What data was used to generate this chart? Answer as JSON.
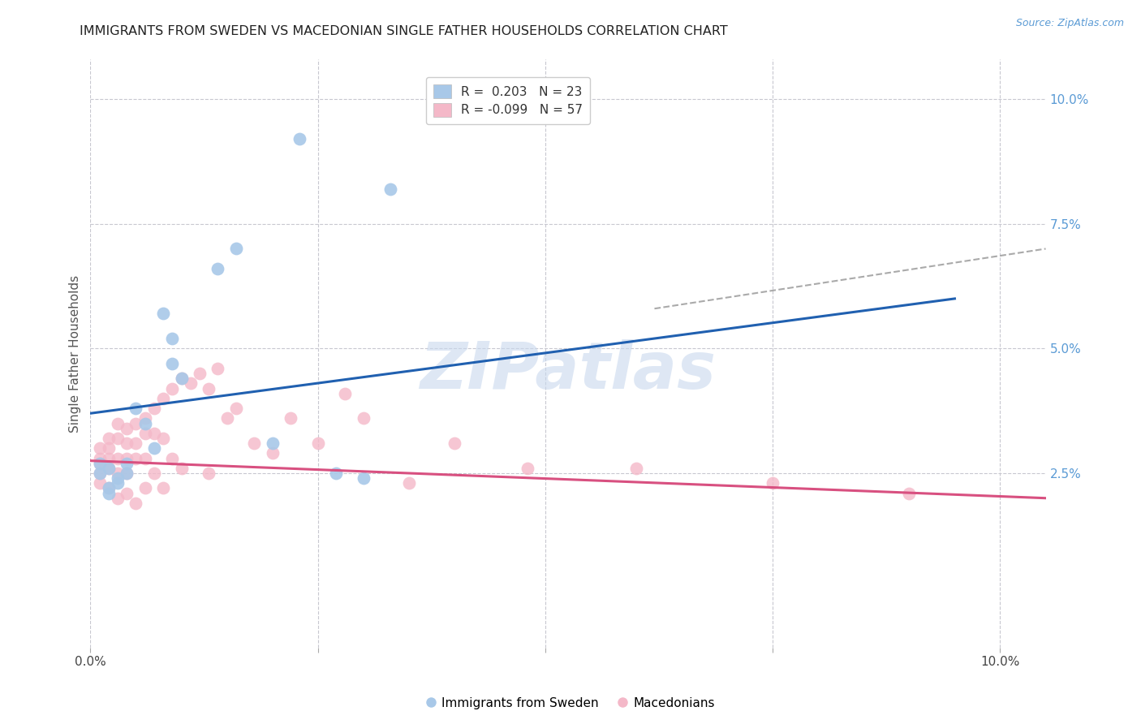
{
  "title": "IMMIGRANTS FROM SWEDEN VS MACEDONIAN SINGLE FATHER HOUSEHOLDS CORRELATION CHART",
  "source": "Source: ZipAtlas.com",
  "ylabel": "Single Father Households",
  "ytick_labels": [
    "2.5%",
    "5.0%",
    "7.5%",
    "10.0%"
  ],
  "ytick_values": [
    0.025,
    0.05,
    0.075,
    0.1
  ],
  "xlim": [
    0.0,
    0.105
  ],
  "ylim": [
    -0.01,
    0.108
  ],
  "legend_blue_label": "Immigrants from Sweden",
  "legend_pink_label": "Macedonians",
  "legend_r_blue": "R =  0.203",
  "legend_n_blue": "N = 23",
  "legend_r_pink": "R = -0.099",
  "legend_n_pink": "N = 57",
  "blue_color": "#a8c8e8",
  "pink_color": "#f4b8c8",
  "blue_line_color": "#2060b0",
  "pink_line_color": "#d85080",
  "dashed_line_color": "#aaaaaa",
  "grid_color": "#c8c8d0",
  "background_color": "#ffffff",
  "watermark": "ZIPatlas",
  "blue_scatter_x": [
    0.023,
    0.033,
    0.016,
    0.014,
    0.008,
    0.009,
    0.009,
    0.01,
    0.005,
    0.006,
    0.007,
    0.004,
    0.004,
    0.003,
    0.003,
    0.002,
    0.002,
    0.002,
    0.001,
    0.001,
    0.02,
    0.027,
    0.03
  ],
  "blue_scatter_y": [
    0.092,
    0.082,
    0.07,
    0.066,
    0.057,
    0.052,
    0.047,
    0.044,
    0.038,
    0.035,
    0.03,
    0.027,
    0.025,
    0.024,
    0.023,
    0.022,
    0.021,
    0.026,
    0.027,
    0.025,
    0.031,
    0.025,
    0.024
  ],
  "pink_scatter_x": [
    0.001,
    0.001,
    0.001,
    0.001,
    0.001,
    0.002,
    0.002,
    0.002,
    0.002,
    0.002,
    0.003,
    0.003,
    0.003,
    0.003,
    0.003,
    0.004,
    0.004,
    0.004,
    0.004,
    0.004,
    0.005,
    0.005,
    0.005,
    0.005,
    0.006,
    0.006,
    0.006,
    0.006,
    0.007,
    0.007,
    0.007,
    0.008,
    0.008,
    0.008,
    0.009,
    0.009,
    0.01,
    0.01,
    0.011,
    0.012,
    0.013,
    0.013,
    0.014,
    0.015,
    0.016,
    0.018,
    0.02,
    0.022,
    0.025,
    0.028,
    0.03,
    0.035,
    0.04,
    0.048,
    0.06,
    0.075,
    0.09
  ],
  "pink_scatter_y": [
    0.03,
    0.028,
    0.027,
    0.025,
    0.023,
    0.032,
    0.03,
    0.028,
    0.026,
    0.022,
    0.035,
    0.032,
    0.028,
    0.025,
    0.02,
    0.034,
    0.031,
    0.028,
    0.025,
    0.021,
    0.035,
    0.031,
    0.028,
    0.019,
    0.036,
    0.033,
    0.028,
    0.022,
    0.038,
    0.033,
    0.025,
    0.04,
    0.032,
    0.022,
    0.042,
    0.028,
    0.044,
    0.026,
    0.043,
    0.045,
    0.042,
    0.025,
    0.046,
    0.036,
    0.038,
    0.031,
    0.029,
    0.036,
    0.031,
    0.041,
    0.036,
    0.023,
    0.031,
    0.026,
    0.026,
    0.023,
    0.021
  ],
  "blue_line_x": [
    0.0,
    0.095
  ],
  "blue_line_y_start": 0.037,
  "blue_line_y_end": 0.06,
  "pink_line_x": [
    0.0,
    0.105
  ],
  "pink_line_y_start": 0.0275,
  "pink_line_y_end": 0.02,
  "dashed_line_x": [
    0.062,
    0.105
  ],
  "dashed_line_y_start": 0.058,
  "dashed_line_y_end": 0.07,
  "xtick_positions": [
    0.0,
    0.025,
    0.05,
    0.075,
    0.1
  ],
  "xtick_labels_show": [
    "0.0%",
    "",
    "",
    "",
    "10.0%"
  ]
}
